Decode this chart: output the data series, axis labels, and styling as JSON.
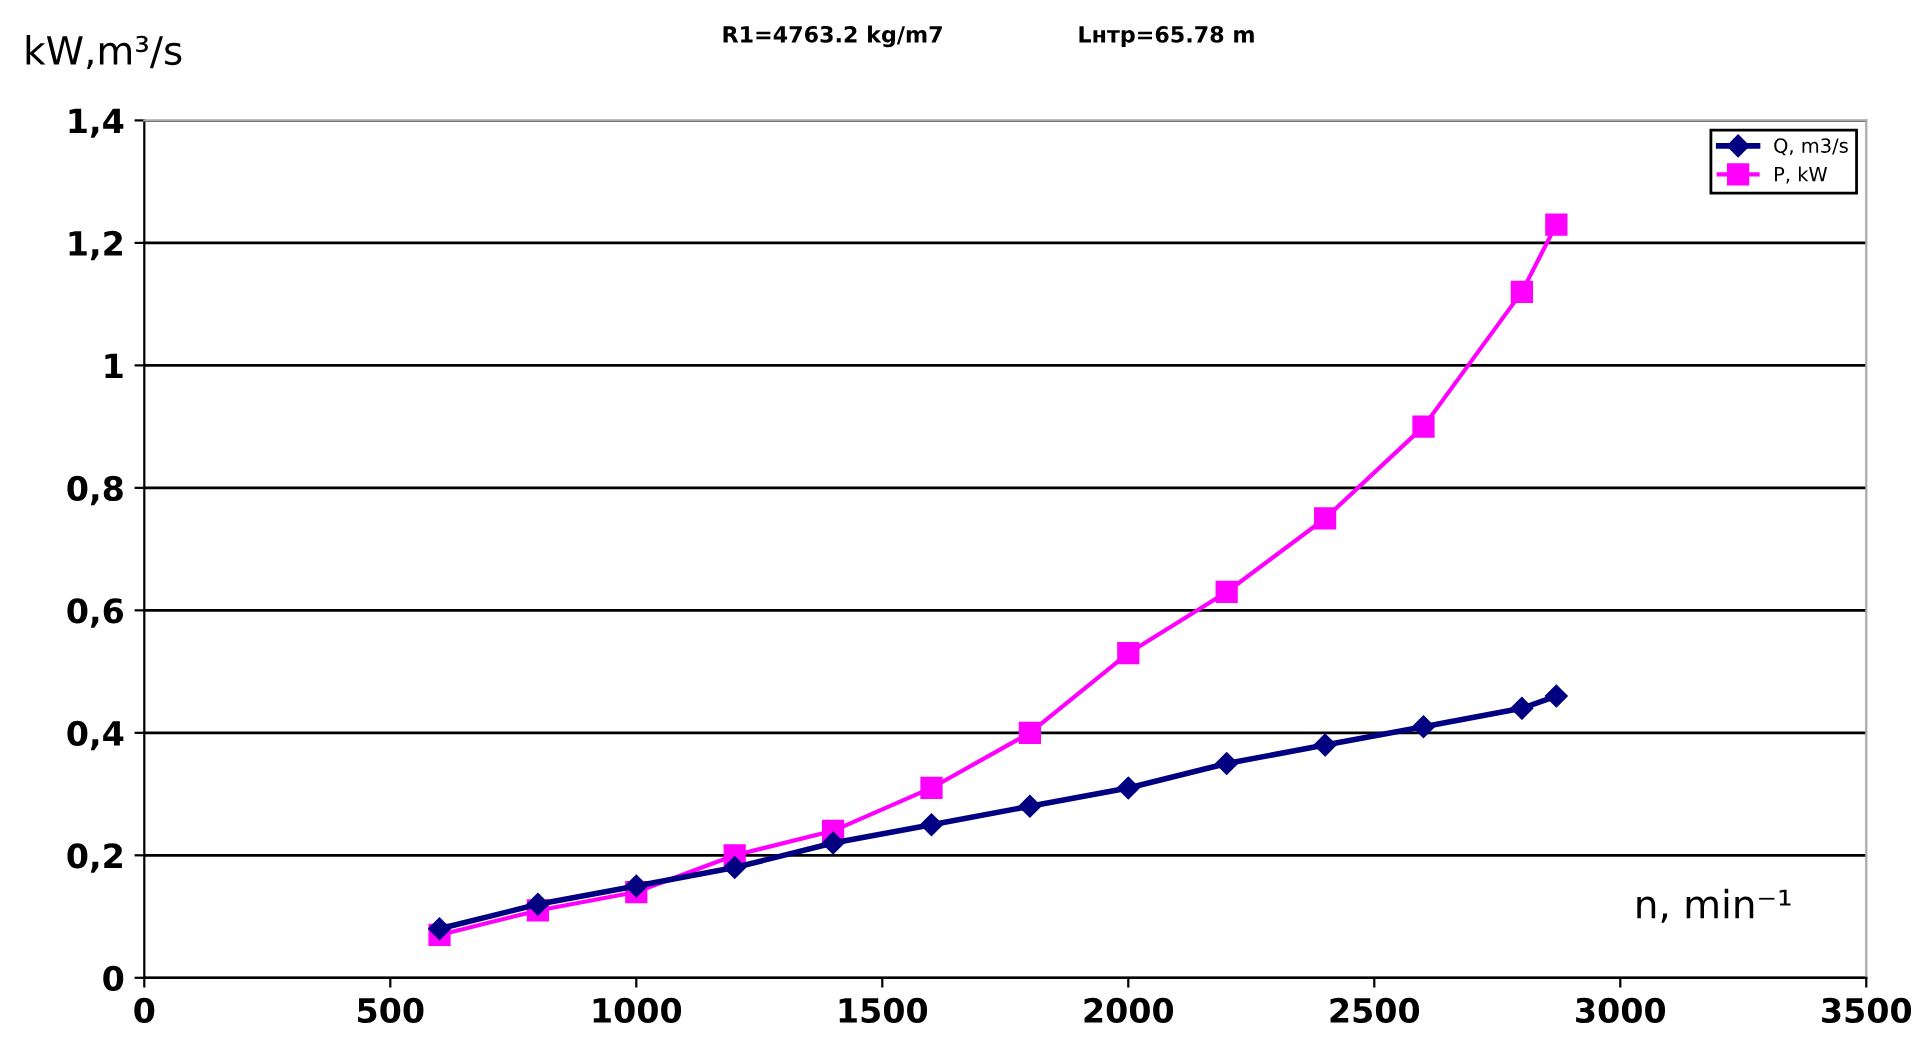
{
  "chart_data": {
    "type": "line",
    "annotations": [
      "R1=4763.2 kg/m7",
      "Lнтр=65.78 m"
    ],
    "xlabel": "n, min⁻¹",
    "ylabel": "kW,m³/s",
    "x": [
      600,
      800,
      1000,
      1200,
      1400,
      1600,
      1800,
      2000,
      2200,
      2400,
      2600,
      2800,
      2870
    ],
    "series": [
      {
        "name": "Q, m3/s",
        "color": "#000080",
        "marker": "diamond",
        "values": [
          0.08,
          0.12,
          0.15,
          0.18,
          0.22,
          0.25,
          0.28,
          0.31,
          0.35,
          0.38,
          0.41,
          0.44,
          0.46
        ]
      },
      {
        "name": "P, kW",
        "color": "#ff00ff",
        "marker": "square",
        "values": [
          0.07,
          0.11,
          0.14,
          0.2,
          0.24,
          0.31,
          0.4,
          0.53,
          0.63,
          0.75,
          0.9,
          1.12,
          1.23
        ]
      }
    ],
    "xlim": [
      0,
      3500
    ],
    "xticks": [
      0,
      500,
      1000,
      1500,
      2000,
      2500,
      3000,
      3500
    ],
    "ylim": [
      0,
      1.4
    ],
    "yticks": [
      0,
      {
        "value": 0.2,
        "label": "0,2"
      },
      {
        "value": 0.4,
        "label": "0,4"
      },
      {
        "value": 0.6,
        "label": "0,6"
      },
      {
        "value": 0.8,
        "label": "0,8"
      },
      1,
      {
        "value": 1.2,
        "label": "1,2"
      },
      {
        "value": 1.4,
        "label": "1,4"
      }
    ],
    "grid": "y",
    "legend": "top right",
    "line_style": "solid"
  }
}
